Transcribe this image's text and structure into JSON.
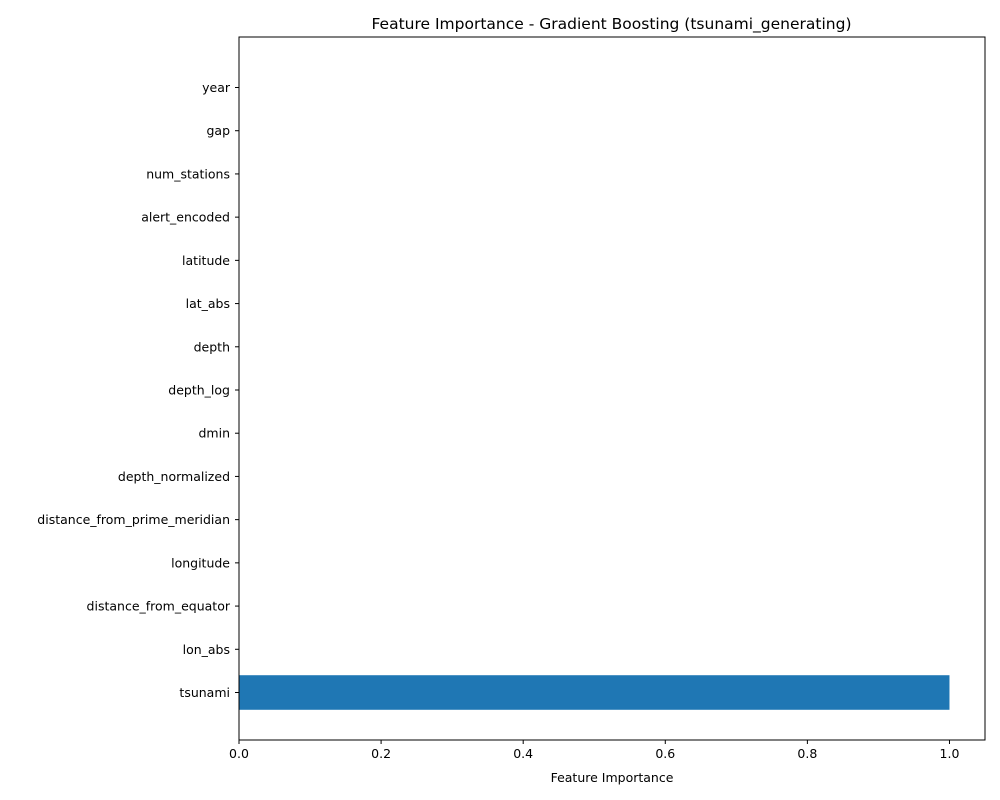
{
  "chart_data": {
    "type": "bar",
    "orientation": "horizontal",
    "title": "Feature Importance - Gradient Boosting (tsunami_generating)",
    "xlabel": "Feature Importance",
    "ylabel": "",
    "categories": [
      "tsunami",
      "lon_abs",
      "distance_from_equator",
      "longitude",
      "distance_from_prime_meridian",
      "depth_normalized",
      "dmin",
      "depth_log",
      "depth",
      "lat_abs",
      "latitude",
      "alert_encoded",
      "num_stations",
      "gap",
      "year"
    ],
    "values": [
      1.0,
      0,
      0,
      0,
      0,
      0,
      0,
      0,
      0,
      0,
      0,
      0,
      0,
      0,
      0
    ],
    "xlim": [
      0,
      1.05
    ],
    "xticks": [
      0.0,
      0.2,
      0.4,
      0.6,
      0.8,
      1.0
    ],
    "xtick_labels": [
      "0.0",
      "0.2",
      "0.4",
      "0.6",
      "0.8",
      "1.0"
    ],
    "bar_color": "#1f77b4",
    "grid": false,
    "legend": "none"
  }
}
